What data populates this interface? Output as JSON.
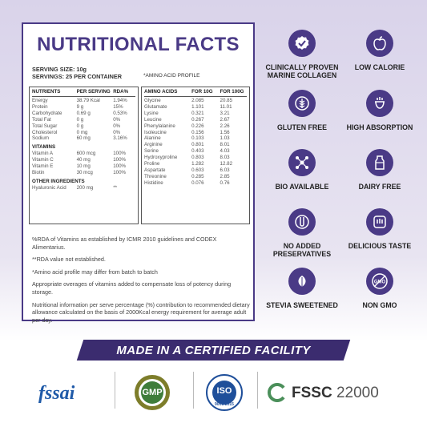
{
  "panel": {
    "title": "NUTRITIONAL FACTS",
    "serving_size": "SERVING SIZE: 10g",
    "servings_per_container": "SERVINGS: 25 PER CONTAINER",
    "amino_header": "*AMINO ACID PROFILE"
  },
  "nutrients": {
    "headers": [
      "NUTRIENTS",
      "PER SERVING",
      "RDA%"
    ],
    "rows": [
      [
        "Energy",
        "38.79 Kcal",
        "1.94%"
      ],
      [
        "Protein",
        "9 g",
        "15%"
      ],
      [
        "Carbohydrate",
        "0.69 g",
        "0.53%"
      ],
      [
        "Total Fat",
        "0 g",
        "0%"
      ],
      [
        "Total Sugar",
        "0 g",
        "0%"
      ],
      [
        "Cholesterol",
        "0 mg",
        "0%"
      ],
      [
        "Sodium",
        "60 mg",
        "3.16%"
      ]
    ],
    "vitamins_title": "VITAMINS",
    "vitamins": [
      [
        "Vitamin A",
        "600 mcg",
        "100%"
      ],
      [
        "Vitamin C",
        "40 mg",
        "100%"
      ],
      [
        "Vitamin E",
        "10 mg",
        "100%"
      ],
      [
        "Biotin",
        "30 mcg",
        "100%"
      ]
    ],
    "other_title": "OTHER INGREDIENTS",
    "other": [
      [
        "Hyaluronic Acid",
        "200 mg",
        "**"
      ]
    ]
  },
  "amino": {
    "headers": [
      "AMINO ACIDS",
      "FOR 10G",
      "FOR 100G"
    ],
    "rows": [
      [
        "Glycine",
        "2.085",
        "20.85"
      ],
      [
        "Glutamate",
        "1.101",
        "11.01"
      ],
      [
        "Lysine",
        "0.321",
        "3.21"
      ],
      [
        "Leucine",
        "0.267",
        "2.67"
      ],
      [
        "Phenylalanine",
        "0.226",
        "2.26"
      ],
      [
        "Isoleucine",
        "0.156",
        "1.56"
      ],
      [
        "Alanine",
        "0.103",
        "1.03"
      ],
      [
        "Arginine",
        "0.801",
        "8.01"
      ],
      [
        "Serine",
        "0.403",
        "4.03"
      ],
      [
        "Hydroxyproline",
        "0.803",
        "8.03"
      ],
      [
        "Proline",
        "1.282",
        "12.82"
      ],
      [
        "Aspartate",
        "0.603",
        "6.03"
      ],
      [
        "Threonine",
        "0.285",
        "2.85"
      ],
      [
        "Histidine",
        "0.076",
        "0.76"
      ]
    ]
  },
  "notes": [
    "%RDA of Vitamins as established by ICMR 2010 guidelines and CODEX Alimentarius.",
    "**RDA value not established.",
    "*Amino acid profile may differ from batch to batch",
    "Appropriate overages of vitamins added to compensate loss of potency during storage.",
    "Nutritional information per serve percentage (%) contribution to recommended dietary allowance calculated on the basis of 2000Kcal energy requirement for average adult per day."
  ],
  "features": [
    {
      "label": "CLINICALLY PROVEN MARINE COLLAGEN",
      "icon": "check-badge-icon"
    },
    {
      "label": "LOW CALORIE",
      "icon": "apple-icon"
    },
    {
      "label": "GLUTEN FREE",
      "icon": "wheat-icon"
    },
    {
      "label": "HIGH ABSORPTION",
      "icon": "absorption-icon"
    },
    {
      "label": "BIO AVAILABLE",
      "icon": "molecule-icon"
    },
    {
      "label": "DAIRY FREE",
      "icon": "milk-icon"
    },
    {
      "label": "NO ADDED PRESERVATIVES",
      "icon": "test-tube-icon"
    },
    {
      "label": "DELICIOUS TASTE",
      "icon": "taste-icon"
    },
    {
      "label": "STEVIA SWEETENED",
      "icon": "leaf-icon"
    },
    {
      "label": "NON GMO",
      "icon": "non-gmo-icon"
    }
  ],
  "banner": "MADE IN A CERTIFIED FACILITY",
  "logos": {
    "fssai": "fssai",
    "gmp": "GMP",
    "iso": "ISO",
    "iso_number": "9001:2015",
    "fssc": "FSSC",
    "fssc_number": "22000"
  },
  "colors": {
    "brand": "#4a3a86",
    "banner": "#3b2c6f"
  }
}
